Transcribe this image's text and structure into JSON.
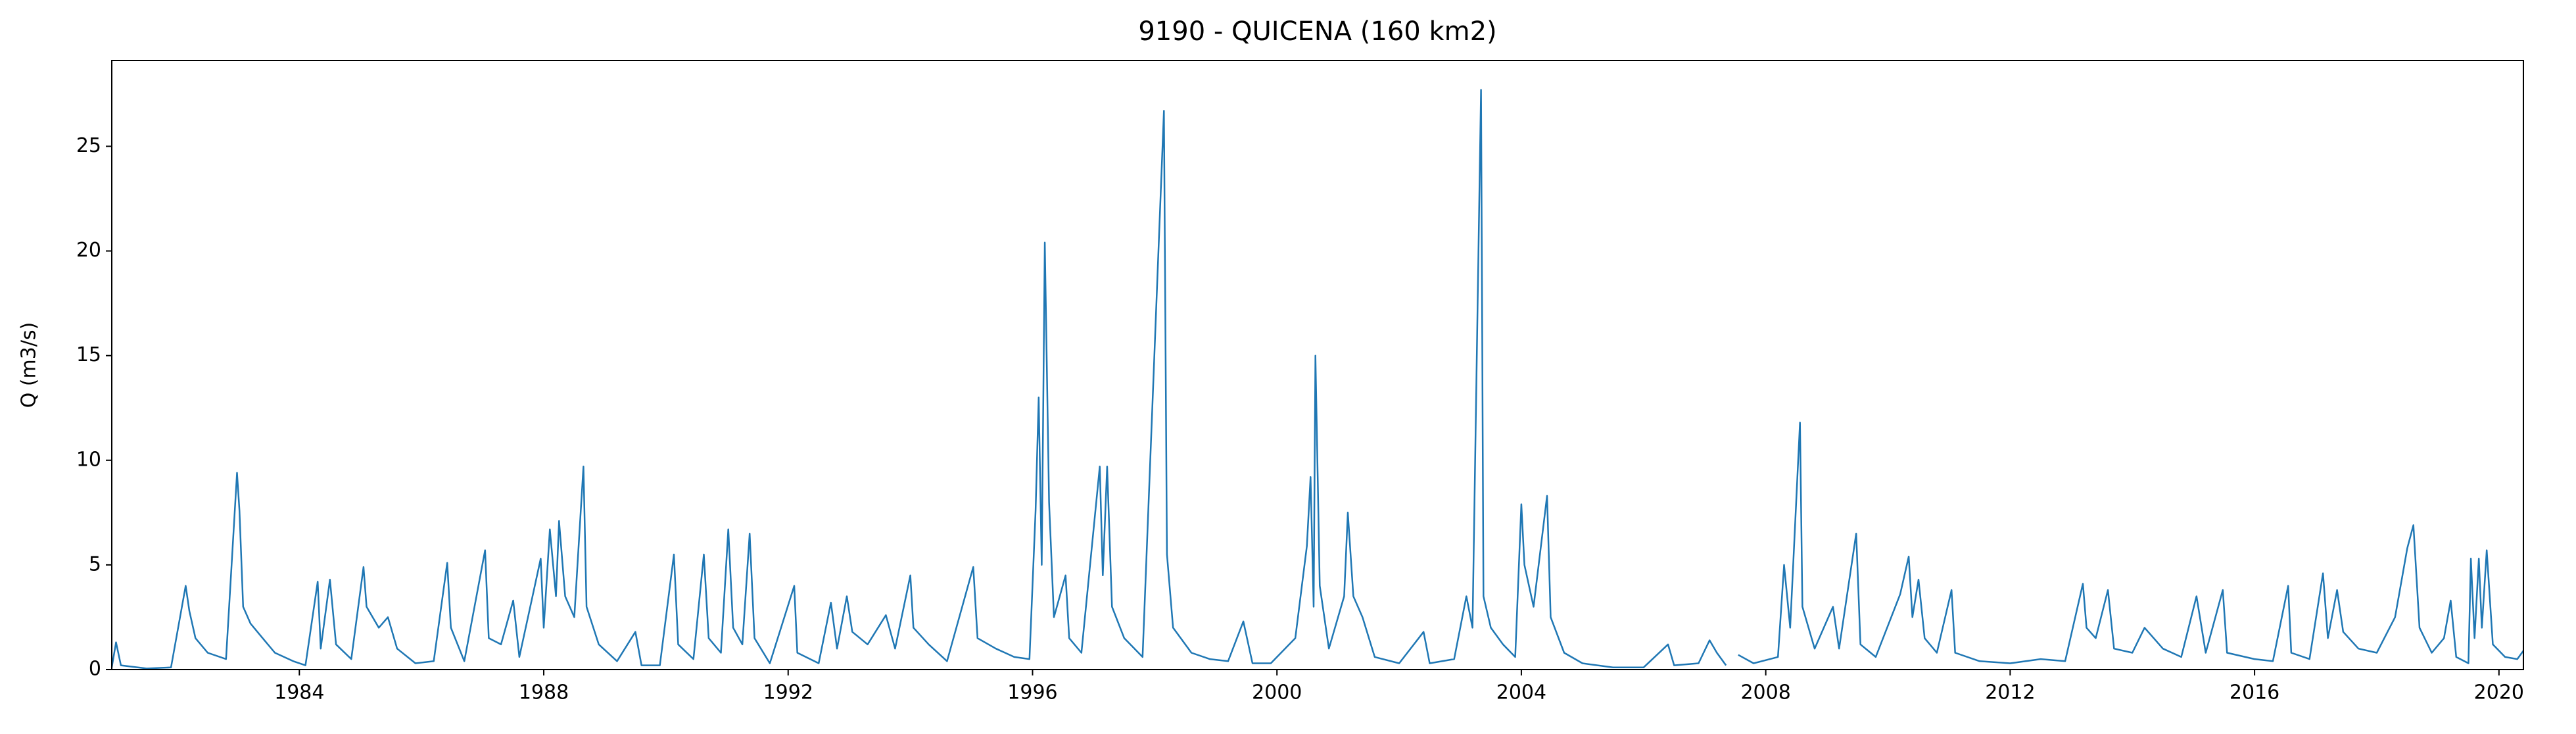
{
  "chart_data": {
    "type": "line",
    "title": "9190 - QUICENA (160 km2)",
    "y_label": "Q (m3/s)",
    "xlim": [
      1980.93,
      2020.4
    ],
    "xticks": [
      1984,
      1988,
      1992,
      1996,
      2000,
      2004,
      2008,
      2012,
      2016,
      2020
    ],
    "ylim": [
      0,
      29.1
    ],
    "yticks": [
      0,
      5,
      10,
      15,
      20,
      25
    ],
    "grid": false,
    "series": [
      {
        "color": "#1f77b4",
        "x": [
          1980.93,
          1981.0,
          1981.08,
          1981.5,
          1981.9,
          1982.14,
          1982.2,
          1982.3,
          1982.5,
          1982.8,
          1982.98,
          1983.02,
          1983.08,
          1983.2,
          1983.4,
          1983.6,
          1983.9,
          1984.1,
          1984.3,
          1984.35,
          1984.5,
          1984.6,
          1984.85,
          1985.05,
          1985.1,
          1985.3,
          1985.45,
          1985.6,
          1985.9,
          1986.2,
          1986.42,
          1986.48,
          1986.7,
          1987.04,
          1987.1,
          1987.3,
          1987.5,
          1987.6,
          1987.95,
          1988.0,
          1988.1,
          1988.2,
          1988.25,
          1988.35,
          1988.5,
          1988.65,
          1988.7,
          1988.9,
          1989.2,
          1989.5,
          1989.6,
          1989.9,
          1990.13,
          1990.2,
          1990.45,
          1990.62,
          1990.7,
          1990.9,
          1991.02,
          1991.1,
          1991.25,
          1991.37,
          1991.45,
          1991.7,
          1992.1,
          1992.15,
          1992.5,
          1992.7,
          1992.8,
          1992.96,
          1993.05,
          1993.3,
          1993.6,
          1993.75,
          1994.0,
          1994.05,
          1994.3,
          1994.6,
          1995.03,
          1995.1,
          1995.4,
          1995.7,
          1995.95,
          1996.05,
          1996.1,
          1996.15,
          1996.2,
          1996.27,
          1996.35,
          1996.54,
          1996.6,
          1996.8,
          1997.1,
          1997.15,
          1997.22,
          1997.3,
          1997.5,
          1997.8,
          1998.15,
          1998.2,
          1998.3,
          1998.6,
          1998.9,
          1999.2,
          1999.45,
          1999.6,
          1999.9,
          2000.3,
          2000.49,
          2000.55,
          2000.6,
          2000.63,
          2000.7,
          2000.85,
          2001.1,
          2001.16,
          2001.25,
          2001.4,
          2001.6,
          2002.0,
          2002.4,
          2002.5,
          2002.9,
          2003.1,
          2003.2,
          2003.34,
          2003.38,
          2003.5,
          2003.7,
          2003.9,
          2004.0,
          2004.05,
          2004.2,
          2004.42,
          2004.48,
          2004.7,
          2005.0,
          2005.5,
          2006.0,
          2006.4,
          2006.5,
          2006.9,
          2007.08,
          2007.2,
          2007.35,
          2007.45,
          2007.55,
          2007.8,
          2008.2,
          2008.3,
          2008.4,
          2008.56,
          2008.6,
          2008.8,
          2009.1,
          2009.2,
          2009.48,
          2009.55,
          2009.8,
          2010.2,
          2010.34,
          2010.4,
          2010.5,
          2010.6,
          2010.8,
          2011.04,
          2011.1,
          2011.5,
          2012.0,
          2012.5,
          2012.9,
          2013.19,
          2013.25,
          2013.4,
          2013.6,
          2013.7,
          2014.0,
          2014.2,
          2014.5,
          2014.8,
          2015.05,
          2015.2,
          2015.48,
          2015.55,
          2016.0,
          2016.3,
          2016.55,
          2016.6,
          2016.9,
          2017.12,
          2017.2,
          2017.35,
          2017.45,
          2017.7,
          2018.0,
          2018.3,
          2018.5,
          2018.6,
          2018.7,
          2018.9,
          2019.1,
          2019.21,
          2019.3,
          2019.5,
          2019.54,
          2019.6,
          2019.67,
          2019.72,
          2019.8,
          2019.9,
          2020.1,
          2020.3,
          2020.4
        ],
        "values": [
          0.1,
          1.3,
          0.2,
          0.05,
          0.1,
          4.0,
          2.8,
          1.5,
          0.8,
          0.5,
          9.4,
          7.6,
          3.0,
          2.2,
          1.5,
          0.8,
          0.4,
          0.2,
          4.2,
          1.0,
          4.3,
          1.2,
          0.5,
          4.9,
          3.0,
          2.0,
          2.5,
          1.0,
          0.3,
          0.4,
          5.1,
          2.0,
          0.4,
          5.7,
          1.5,
          1.2,
          3.3,
          0.6,
          5.3,
          2.0,
          6.7,
          3.5,
          7.1,
          3.5,
          2.5,
          9.7,
          3.0,
          1.2,
          0.4,
          1.8,
          0.2,
          0.2,
          5.5,
          1.2,
          0.5,
          5.5,
          1.5,
          0.8,
          6.7,
          2.0,
          1.2,
          6.5,
          1.5,
          0.3,
          4.0,
          0.8,
          0.3,
          3.2,
          1.0,
          3.5,
          1.8,
          1.2,
          2.6,
          1.0,
          4.5,
          2.0,
          1.2,
          0.4,
          4.9,
          1.5,
          1.0,
          0.6,
          0.5,
          7.6,
          13.0,
          5.0,
          20.4,
          8.0,
          2.5,
          4.5,
          1.5,
          0.8,
          9.7,
          4.5,
          9.7,
          3.0,
          1.5,
          0.6,
          26.7,
          5.5,
          2.0,
          0.8,
          0.5,
          0.4,
          2.3,
          0.3,
          0.3,
          1.5,
          5.9,
          9.2,
          3.0,
          15.0,
          4.0,
          1.0,
          3.5,
          7.5,
          3.5,
          2.5,
          0.6,
          0.3,
          1.8,
          0.3,
          0.5,
          3.5,
          2.0,
          27.7,
          3.5,
          2.0,
          1.2,
          0.6,
          7.9,
          5.0,
          3.0,
          8.3,
          2.5,
          0.8,
          0.3,
          0.1,
          0.1,
          1.2,
          0.2,
          0.3,
          1.4,
          0.8,
          0.2,
          null,
          0.7,
          0.3,
          0.6,
          5.0,
          2.0,
          11.8,
          3.0,
          1.0,
          3.0,
          1.0,
          6.5,
          1.2,
          0.6,
          3.6,
          5.4,
          2.5,
          4.3,
          1.5,
          0.8,
          3.8,
          0.8,
          0.4,
          0.3,
          0.5,
          0.4,
          4.1,
          2.0,
          1.5,
          3.8,
          1.0,
          0.8,
          2.0,
          1.0,
          0.6,
          3.5,
          0.8,
          3.8,
          0.8,
          0.5,
          0.4,
          4.0,
          0.8,
          0.5,
          4.6,
          1.5,
          3.8,
          1.8,
          1.0,
          0.8,
          2.5,
          5.8,
          6.9,
          2.0,
          0.8,
          1.5,
          3.3,
          0.6,
          0.3,
          5.3,
          1.5,
          5.3,
          2.0,
          5.7,
          1.2,
          0.6,
          0.5,
          0.9
        ]
      }
    ]
  }
}
